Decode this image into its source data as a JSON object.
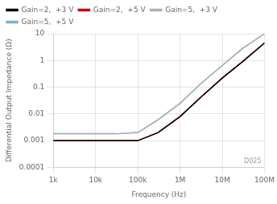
{
  "chart_data": {
    "type": "line",
    "xlabel": "Frequency (Hz)",
    "ylabel": "Differential Output Impedance (Ω)",
    "log": true,
    "x": [
      1000,
      10000,
      30000,
      100000,
      300000,
      1000000,
      3000000,
      10000000,
      30000000,
      100000000
    ],
    "series": [
      {
        "name": "Gain=2,  +3 V",
        "color": "#000000",
        "values": [
          0.001,
          0.001,
          0.001,
          0.001,
          0.002,
          0.008,
          0.04,
          0.22,
          0.9,
          4.5
        ]
      },
      {
        "name": "Gain=2,  +5 V",
        "color": "#cc0000",
        "values": [
          0.001,
          0.001,
          0.001,
          0.001,
          0.002,
          0.008,
          0.04,
          0.22,
          0.9,
          4.5
        ]
      },
      {
        "name": "Gain=5,  +3 V",
        "color": "#b0b0b0",
        "values": [
          0.0018,
          0.0018,
          0.0018,
          0.002,
          0.006,
          0.025,
          0.13,
          0.65,
          2.8,
          10.0
        ]
      },
      {
        "name": "Gain=5,  +5 V",
        "color": "#7ab0d4",
        "values": [
          0.0018,
          0.0018,
          0.0018,
          0.002,
          0.006,
          0.025,
          0.13,
          0.65,
          2.8,
          10.0
        ]
      }
    ],
    "xlim": [
      1000,
      100000000
    ],
    "xticks": [
      {
        "value": 1000,
        "label": "1k"
      },
      {
        "value": 10000,
        "label": "10k"
      },
      {
        "value": 100000,
        "label": "100k"
      },
      {
        "value": 1000000,
        "label": "1M"
      },
      {
        "value": 10000000,
        "label": "10M"
      },
      {
        "value": 100000000,
        "label": "100M"
      }
    ],
    "ylim": [
      0.0001,
      10
    ],
    "yticks": [
      0.0001,
      0.001,
      0.01,
      0.1,
      1,
      10
    ],
    "grid": true,
    "legend": "upper left",
    "annotations": [
      "D025"
    ]
  }
}
